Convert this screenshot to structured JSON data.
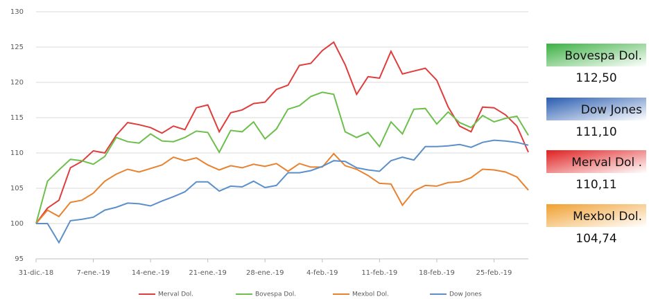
{
  "chart_data": {
    "type": "line",
    "categories": [
      "31-dic.-18",
      null,
      null,
      null,
      null,
      "7-ene.-19",
      null,
      null,
      null,
      null,
      "14-ene.-19",
      null,
      null,
      null,
      null,
      "21-ene.-19",
      null,
      null,
      null,
      null,
      "28-ene.-19",
      null,
      null,
      null,
      null,
      "4-feb.-19",
      null,
      null,
      null,
      null,
      "11-feb.-19",
      null,
      null,
      null,
      null,
      "18-feb.-19",
      null,
      null,
      null,
      null,
      "25-feb.-19",
      null,
      null,
      null
    ],
    "series": [
      {
        "name": "Merval Dol.",
        "color": "#e03c3c",
        "values": [
          100,
          102.2,
          103.3,
          107.9,
          108.8,
          110.3,
          110,
          112.5,
          114.3,
          114,
          113.6,
          112.8,
          113.8,
          113.3,
          116.4,
          116.8,
          113,
          115.7,
          116.1,
          117,
          117.2,
          119,
          119.6,
          122.4,
          122.7,
          124.5,
          125.7,
          122.5,
          118.3,
          120.8,
          120.6,
          124.4,
          121.2,
          121.6,
          122,
          120.3,
          116.5,
          113.8,
          113,
          116.5,
          116.4,
          115.4,
          113.8,
          110.11
        ]
      },
      {
        "name": "Bovespa Dol.",
        "color": "#6cbf4a",
        "values": [
          100,
          106,
          107.6,
          109.1,
          108.9,
          108.4,
          109.5,
          112.2,
          111.6,
          111.4,
          112.7,
          111.7,
          111.6,
          112.2,
          113.1,
          112.9,
          110.1,
          113.2,
          113,
          114.4,
          112,
          113.4,
          116.2,
          116.7,
          118,
          118.6,
          118.3,
          113,
          112.2,
          112.9,
          110.9,
          114.4,
          112.7,
          116.2,
          116.3,
          114.1,
          115.8,
          114.3,
          113.6,
          115.3,
          114.4,
          114.9,
          115.2,
          112.5
        ]
      },
      {
        "name": "Mexbol Dol.",
        "color": "#e8822e",
        "values": [
          100,
          101.9,
          101,
          103,
          103.3,
          104.3,
          106,
          107,
          107.7,
          107.3,
          107.8,
          108.3,
          109.4,
          108.9,
          109.3,
          108.3,
          107.6,
          108.2,
          107.9,
          108.4,
          108.1,
          108.5,
          107.4,
          108.5,
          108,
          108,
          109.9,
          108.2,
          107.7,
          106.8,
          105.7,
          105.6,
          102.6,
          104.6,
          105.4,
          105.3,
          105.8,
          105.9,
          106.5,
          107.7,
          107.6,
          107.3,
          106.6,
          104.74
        ]
      },
      {
        "name": "Dow Jones",
        "color": "#5b8fc9",
        "values": [
          100,
          100,
          97.3,
          100.4,
          100.6,
          100.9,
          101.9,
          102.3,
          102.9,
          102.8,
          102.5,
          103.2,
          103.8,
          104.5,
          105.9,
          105.9,
          104.6,
          105.3,
          105.2,
          106,
          105.1,
          105.4,
          107.2,
          107.2,
          107.5,
          108.1,
          108.9,
          108.8,
          107.9,
          107.6,
          107.4,
          108.9,
          109.4,
          109,
          110.9,
          110.9,
          111,
          111.2,
          110.8,
          111.5,
          111.8,
          111.7,
          111.5,
          111.1
        ]
      }
    ],
    "ylim": [
      95,
      130
    ],
    "yticks": [
      95,
      100,
      105,
      110,
      115,
      120,
      125,
      130
    ],
    "grid": true,
    "legend": "bottom",
    "callouts": [
      {
        "name": "Bovespa Dol.",
        "label": "112,50",
        "color": "#3cb043"
      },
      {
        "name": "Dow Jones",
        "label": "111,10",
        "color": "#2a5db0"
      },
      {
        "name": "Merval Dol .",
        "label": "110,11",
        "color": "#e02020"
      },
      {
        "name": "Mexbol Dol.",
        "label": "104,74",
        "color": "#f0a030"
      }
    ]
  }
}
